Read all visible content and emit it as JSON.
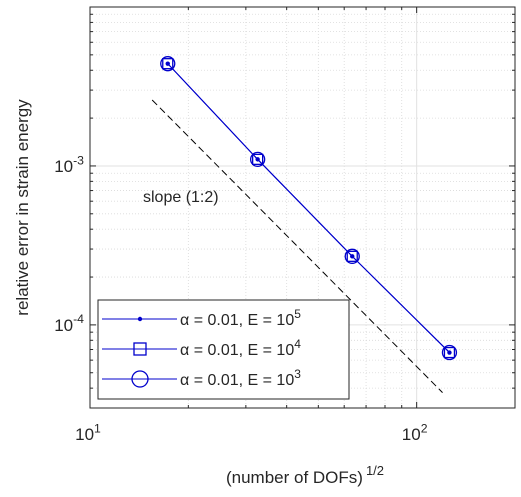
{
  "chart_data": {
    "type": "line",
    "xscale": "log",
    "yscale": "log",
    "xlim": [
      10,
      200
    ],
    "ylim": [
      3e-05,
      0.01
    ],
    "xlabel": "(number of DOFs)",
    "xlabel_sup": "1/2",
    "ylabel": "relative error in strain energy",
    "x_ticks": [
      {
        "value": 10,
        "base": "10",
        "exp": "1"
      },
      {
        "value": 100,
        "base": "10",
        "exp": "2"
      }
    ],
    "y_ticks": [
      {
        "value": 0.0001,
        "base": "10",
        "exp": "-4"
      },
      {
        "value": 0.001,
        "base": "10",
        "exp": "-3"
      }
    ],
    "grid": true,
    "minor_grid": true,
    "legend_position": "bottom-left",
    "series": [
      {
        "label_prefix": "α = 0.01, E = 10",
        "label_exp": "5",
        "marker": "dot",
        "color": "#0000cc",
        "x": [
          17.3,
          32.6,
          63.5,
          126
        ],
        "y": [
          0.0044,
          0.0011,
          0.00027,
          6.7e-05
        ]
      },
      {
        "label_prefix": "α = 0.01, E = 10",
        "label_exp": "4",
        "marker": "square",
        "color": "#0000cc",
        "x": [
          17.3,
          32.6,
          63.5,
          126
        ],
        "y": [
          0.0044,
          0.0011,
          0.00027,
          6.7e-05
        ]
      },
      {
        "label_prefix": "α = 0.01, E = 10",
        "label_exp": "3",
        "marker": "circle",
        "color": "#0000cc",
        "x": [
          17.3,
          32.6,
          63.5,
          126
        ],
        "y": [
          0.0044,
          0.0011,
          0.00027,
          6.7e-05
        ]
      }
    ],
    "reference_line": {
      "label": "slope (1:2)",
      "x": [
        15.5,
        120
      ],
      "y": [
        0.0026,
        3.75e-05
      ],
      "style": "dashed",
      "color": "#000000"
    }
  }
}
